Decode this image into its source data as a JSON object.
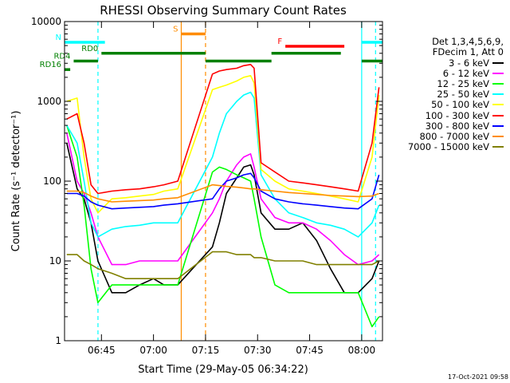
{
  "chart_data": {
    "type": "line",
    "title": "RHESSI Observing Summary Count Rates",
    "xlabel": "Start Time (29-May-05 06:34:22)",
    "ylabel": "Count Rate (s⁻¹ detector⁻¹)",
    "yscale": "log",
    "ylim": [
      1,
      10000
    ],
    "xlim": [
      "06:34:22",
      "08:06:00"
    ],
    "x_ticks": [
      "06:45",
      "07:00",
      "07:15",
      "07:30",
      "07:45",
      "08:00"
    ],
    "y_ticks": [
      "1",
      "10",
      "100",
      "1000",
      "10000"
    ],
    "grid": false,
    "legend_position": "right",
    "legend_header": [
      "Det 1,3,4,5,6,9,",
      "FDecim 1, Att 0"
    ],
    "series": [
      {
        "name": "3 - 6 keV",
        "color": "#000000",
        "x": [
          "06:35",
          "06:38",
          "06:40",
          "06:42",
          "06:44",
          "06:48",
          "06:52",
          "06:56",
          "07:00",
          "07:03",
          "07:07",
          "07:17",
          "07:19",
          "07:21",
          "07:24",
          "07:26",
          "07:28",
          "07:29",
          "07:31",
          "07:35",
          "07:39",
          "07:43",
          "07:47",
          "07:51",
          "07:55",
          "07:59",
          "08:03",
          "08:05"
        ],
        "values": [
          300,
          80,
          60,
          30,
          10,
          4,
          4,
          5,
          6,
          5,
          5,
          15,
          30,
          70,
          110,
          150,
          160,
          120,
          40,
          25,
          25,
          30,
          18,
          8,
          4,
          4,
          6,
          10
        ]
      },
      {
        "name": "6 - 12 keV",
        "color": "#ff00ff",
        "x": [
          "06:35",
          "06:38",
          "06:40",
          "06:42",
          "06:44",
          "06:48",
          "06:52",
          "06:56",
          "07:00",
          "07:03",
          "07:07",
          "07:17",
          "07:19",
          "07:21",
          "07:24",
          "07:26",
          "07:28",
          "07:29",
          "07:31",
          "07:35",
          "07:39",
          "07:43",
          "07:47",
          "07:51",
          "07:55",
          "07:59",
          "08:03",
          "08:05"
        ],
        "values": [
          400,
          100,
          70,
          40,
          20,
          9,
          9,
          10,
          10,
          10,
          10,
          40,
          60,
          100,
          160,
          200,
          220,
          150,
          60,
          35,
          30,
          30,
          25,
          18,
          12,
          9,
          10,
          12
        ]
      },
      {
        "name": "12 - 25 keV",
        "color": "#00ff00",
        "x": [
          "06:35",
          "06:38",
          "06:40",
          "06:42",
          "06:44",
          "06:48",
          "06:52",
          "06:56",
          "07:00",
          "07:03",
          "07:07",
          "07:17",
          "07:19",
          "07:21",
          "07:24",
          "07:26",
          "07:28",
          "07:29",
          "07:31",
          "07:35",
          "07:39",
          "07:43",
          "07:47",
          "07:51",
          "07:55",
          "07:59",
          "08:03",
          "08:05"
        ],
        "values": [
          500,
          200,
          50,
          8,
          3,
          5,
          5,
          5,
          5,
          5,
          5,
          130,
          150,
          140,
          120,
          110,
          100,
          60,
          20,
          5,
          4,
          4,
          4,
          4,
          4,
          4,
          1.5,
          2
        ]
      },
      {
        "name": "25 - 50 keV",
        "color": "#00ffff",
        "x": [
          "06:35",
          "06:38",
          "06:40",
          "06:42",
          "06:44",
          "06:48",
          "06:52",
          "06:56",
          "07:00",
          "07:03",
          "07:07",
          "07:17",
          "07:19",
          "07:21",
          "07:24",
          "07:26",
          "07:28",
          "07:29",
          "07:31",
          "07:35",
          "07:39",
          "07:43",
          "07:47",
          "07:51",
          "07:55",
          "07:59",
          "08:03",
          "08:05"
        ],
        "values": [
          500,
          300,
          100,
          30,
          20,
          25,
          27,
          28,
          30,
          30,
          30,
          200,
          400,
          700,
          1000,
          1200,
          1300,
          1100,
          120,
          60,
          40,
          35,
          30,
          28,
          25,
          20,
          30,
          50
        ]
      },
      {
        "name": "50 - 100 keV",
        "color": "#ffff00",
        "x": [
          "06:35",
          "06:38",
          "06:40",
          "06:42",
          "06:44",
          "06:48",
          "06:52",
          "06:56",
          "07:00",
          "07:03",
          "07:07",
          "07:17",
          "07:19",
          "07:21",
          "07:24",
          "07:26",
          "07:28",
          "07:29",
          "07:31",
          "07:35",
          "07:39",
          "07:43",
          "07:47",
          "07:51",
          "07:55",
          "07:59",
          "08:03",
          "08:05"
        ],
        "values": [
          1000,
          1100,
          200,
          60,
          40,
          60,
          62,
          65,
          68,
          75,
          80,
          1400,
          1500,
          1600,
          1800,
          2000,
          2100,
          1700,
          140,
          100,
          80,
          75,
          70,
          65,
          60,
          55,
          200,
          1200
        ]
      },
      {
        "name": "100 - 300 keV",
        "color": "#ff0000",
        "x": [
          "06:35",
          "06:38",
          "06:40",
          "06:42",
          "06:44",
          "06:48",
          "06:52",
          "06:56",
          "07:00",
          "07:03",
          "07:07",
          "07:17",
          "07:19",
          "07:21",
          "07:24",
          "07:26",
          "07:28",
          "07:29",
          "07:31",
          "07:35",
          "07:39",
          "07:43",
          "07:47",
          "07:51",
          "07:55",
          "07:59",
          "08:03",
          "08:05"
        ],
        "values": [
          600,
          700,
          300,
          90,
          70,
          75,
          78,
          80,
          85,
          90,
          100,
          2200,
          2400,
          2500,
          2600,
          2800,
          2900,
          2600,
          170,
          130,
          100,
          95,
          90,
          85,
          80,
          75,
          300,
          1500
        ]
      },
      {
        "name": "300 - 800 keV",
        "color": "#0000ff",
        "x": [
          "06:35",
          "06:38",
          "06:40",
          "06:42",
          "06:44",
          "06:48",
          "06:52",
          "06:56",
          "07:00",
          "07:03",
          "07:07",
          "07:17",
          "07:19",
          "07:21",
          "07:24",
          "07:26",
          "07:28",
          "07:29",
          "07:31",
          "07:35",
          "07:39",
          "07:43",
          "07:47",
          "07:51",
          "07:55",
          "07:59",
          "08:03",
          "08:05"
        ],
        "values": [
          70,
          70,
          65,
          55,
          50,
          45,
          46,
          47,
          48,
          50,
          52,
          60,
          80,
          100,
          110,
          120,
          125,
          110,
          75,
          60,
          55,
          52,
          50,
          48,
          46,
          45,
          60,
          120
        ]
      },
      {
        "name": "800 - 7000 keV",
        "color": "#ff8c00",
        "x": [
          "06:35",
          "06:38",
          "06:40",
          "06:42",
          "06:44",
          "06:48",
          "06:52",
          "06:56",
          "07:00",
          "07:03",
          "07:07",
          "07:17",
          "07:19",
          "07:21",
          "07:24",
          "07:26",
          "07:28",
          "07:29",
          "07:31",
          "07:35",
          "07:39",
          "07:43",
          "07:47",
          "07:51",
          "07:55",
          "07:59",
          "08:03",
          "08:05"
        ],
        "values": [
          75,
          75,
          72,
          65,
          60,
          55,
          56,
          57,
          58,
          60,
          62,
          90,
          88,
          86,
          84,
          82,
          80,
          80,
          78,
          75,
          72,
          70,
          68,
          66,
          65,
          64,
          65,
          70
        ]
      },
      {
        "name": "7000 - 15000 keV",
        "color": "#808000",
        "x": [
          "06:35",
          "06:38",
          "06:40",
          "06:42",
          "06:44",
          "06:48",
          "06:52",
          "06:56",
          "07:00",
          "07:03",
          "07:07",
          "07:17",
          "07:19",
          "07:21",
          "07:24",
          "07:26",
          "07:28",
          "07:29",
          "07:31",
          "07:35",
          "07:39",
          "07:43",
          "07:47",
          "07:51",
          "07:55",
          "07:59",
          "08:03",
          "08:05"
        ],
        "values": [
          12,
          12,
          10,
          9,
          8,
          7,
          6,
          6,
          6,
          6,
          6,
          13,
          13,
          13,
          12,
          12,
          12,
          11,
          11,
          10,
          10,
          10,
          9,
          9,
          9,
          9,
          9,
          10
        ]
      }
    ],
    "flag_bars": [
      {
        "label": "N",
        "color": "#00ffff",
        "level": 5500,
        "segments": [
          [
            "06:34:22",
            "06:46"
          ],
          [
            "08:00",
            "08:06"
          ]
        ]
      },
      {
        "label": "S",
        "color": "#ff8c00",
        "level": 7000,
        "segments": [
          [
            "07:08",
            "07:15"
          ]
        ]
      },
      {
        "label": "F",
        "color": "#ff0000",
        "level": 4900,
        "segments": [
          [
            "07:38",
            "07:55"
          ]
        ]
      },
      {
        "label": "RD0",
        "color": "#008000",
        "level": 4000,
        "segments": [
          [
            "06:45",
            "07:15"
          ],
          [
            "07:34",
            "07:54"
          ]
        ]
      },
      {
        "label": "RD4",
        "color": "#008000",
        "level": 3200,
        "segments": [
          [
            "06:37",
            "06:44"
          ],
          [
            "07:15",
            "07:34"
          ],
          [
            "08:00",
            "08:06"
          ]
        ]
      },
      {
        "label": "RD16",
        "color": "#008000",
        "level": 2500,
        "segments": [
          [
            "06:34:22",
            "06:36"
          ]
        ]
      }
    ],
    "vertical_markers": [
      {
        "time": "06:44",
        "color": "#00ffff",
        "style": "dashed"
      },
      {
        "time": "07:08",
        "color": "#ff8c00",
        "style": "solid"
      },
      {
        "time": "07:15",
        "color": "#ff8c00",
        "style": "dashed"
      },
      {
        "time": "08:00",
        "color": "#00ffff",
        "style": "solid"
      },
      {
        "time": "08:04",
        "color": "#00ffff",
        "style": "dashed"
      }
    ]
  },
  "timestamp": "17-Oct-2021 09:58"
}
